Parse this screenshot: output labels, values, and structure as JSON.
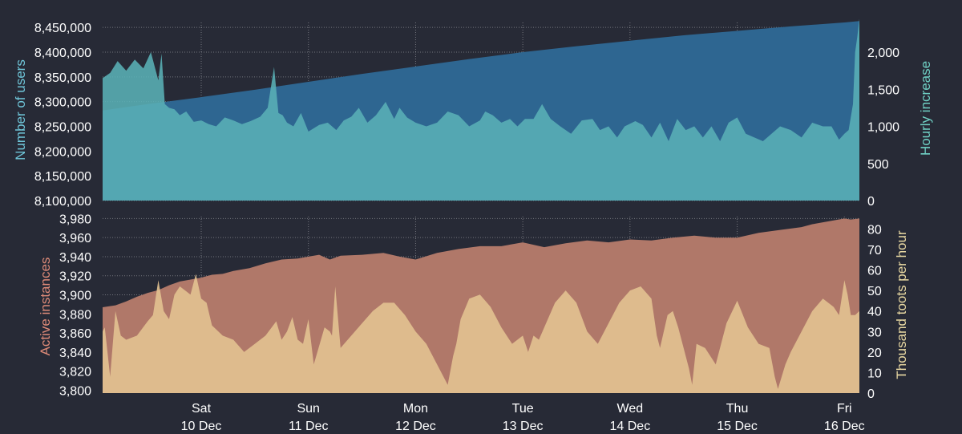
{
  "colors": {
    "background": "#272a36",
    "users_area": "#2e6691",
    "hourly_area": "#5ab0b6",
    "instances_area": "#b07869",
    "toots_area": "#e3c291",
    "tick_text": "#ffffff",
    "users_label": "#6fc5d8",
    "hourly_label": "#6fd0c4",
    "instances_label": "#dd8a78",
    "toots_label": "#e8d8a2"
  },
  "x_ticks": [
    {
      "day": "Sat",
      "date": "10 Dec",
      "x": 2.0
    },
    {
      "day": "Sun",
      "date": "11 Dec",
      "x": 3.0
    },
    {
      "day": "Mon",
      "date": "12 Dec",
      "x": 4.0
    },
    {
      "day": "Tue",
      "date": "13 Dec",
      "x": 5.0
    },
    {
      "day": "Wed",
      "date": "14 Dec",
      "x": 6.0
    },
    {
      "day": "Thu",
      "date": "15 Dec",
      "x": 7.0
    },
    {
      "day": "Fri",
      "date": "16 Dec",
      "x": 8.0
    }
  ],
  "chart_data": [
    {
      "type": "area",
      "x_domain": [
        1.08,
        8.14
      ],
      "y_left": {
        "label": "Number of users",
        "lim": [
          8100000,
          8460000
        ],
        "ticks": [
          "8,100,000",
          "8,150,000",
          "8,200,000",
          "8,250,000",
          "8,300,000",
          "8,350,000",
          "8,400,000",
          "8,450,000"
        ],
        "tick_values": [
          8100000,
          8150000,
          8200000,
          8250000,
          8300000,
          8350000,
          8400000,
          8450000
        ]
      },
      "y_right": {
        "label": "Hourly increase",
        "lim": [
          0,
          2400
        ],
        "ticks": [
          "0",
          "500",
          "1,000",
          "1,500",
          "2,000"
        ],
        "tick_values": [
          0,
          500,
          1000,
          1500,
          2000
        ]
      },
      "series": [
        {
          "axis": "left",
          "x": [
            1.08,
            1.5,
            2.0,
            2.5,
            3.0,
            3.5,
            4.0,
            4.5,
            5.0,
            5.5,
            6.0,
            6.5,
            7.0,
            7.5,
            8.0,
            8.14
          ],
          "values": [
            8282000,
            8295000,
            8309000,
            8324000,
            8340000,
            8356000,
            8371000,
            8386000,
            8400000,
            8412000,
            8423000,
            8434000,
            8443000,
            8452000,
            8460000,
            8463000
          ]
        },
        {
          "axis": "right",
          "x": [
            1.08,
            1.15,
            1.22,
            1.3,
            1.38,
            1.46,
            1.53,
            1.6,
            1.63,
            1.66,
            1.7,
            1.75,
            1.8,
            1.86,
            1.93,
            2.0,
            2.07,
            2.14,
            2.22,
            2.3,
            2.38,
            2.46,
            2.55,
            2.62,
            2.68,
            2.72,
            2.76,
            2.8,
            2.86,
            2.93,
            3.0,
            3.1,
            3.18,
            3.26,
            3.33,
            3.4,
            3.47,
            3.55,
            3.63,
            3.72,
            3.8,
            3.85,
            3.92,
            4.0,
            4.1,
            4.2,
            4.3,
            4.4,
            4.5,
            4.6,
            4.65,
            4.72,
            4.8,
            4.88,
            4.95,
            5.02,
            5.1,
            5.18,
            5.26,
            5.35,
            5.45,
            5.55,
            5.65,
            5.72,
            5.8,
            5.88,
            5.95,
            6.05,
            6.12,
            6.2,
            6.28,
            6.36,
            6.44,
            6.52,
            6.6,
            6.68,
            6.76,
            6.84,
            6.92,
            7.0,
            7.08,
            7.16,
            7.24,
            7.32,
            7.4,
            7.5,
            7.6,
            7.7,
            7.8,
            7.88,
            7.95,
            8.0,
            8.04,
            8.08,
            8.1,
            8.12,
            8.14
          ],
          "values": [
            1650,
            1720,
            1880,
            1750,
            1900,
            1780,
            2000,
            1620,
            1980,
            1300,
            1250,
            1230,
            1150,
            1200,
            1060,
            1080,
            1030,
            1000,
            1120,
            1080,
            1030,
            1070,
            1130,
            1250,
            1800,
            1180,
            1150,
            1050,
            1000,
            1180,
            930,
            1020,
            1050,
            950,
            1080,
            1130,
            1250,
            1050,
            1150,
            1330,
            1100,
            1250,
            1120,
            1050,
            1000,
            1050,
            1200,
            1150,
            1000,
            1080,
            1200,
            1150,
            1050,
            1100,
            1000,
            1100,
            1100,
            1300,
            1100,
            1000,
            900,
            1080,
            1100,
            950,
            1000,
            850,
            1000,
            1070,
            1020,
            850,
            1050,
            800,
            1100,
            950,
            1000,
            850,
            1000,
            800,
            1050,
            1120,
            900,
            850,
            800,
            900,
            1000,
            950,
            850,
            1050,
            1000,
            1000,
            820,
            900,
            950,
            1300,
            2000,
            2200,
            2450
          ]
        }
      ]
    },
    {
      "type": "area",
      "x_domain": [
        1.08,
        8.14
      ],
      "y_left": {
        "label": "Active instances",
        "lim": [
          3797,
          3982
        ],
        "ticks": [
          "3,800",
          "3,820",
          "3,840",
          "3,860",
          "3,880",
          "3,900",
          "3,920",
          "3,940",
          "3,960",
          "3,980"
        ],
        "tick_values": [
          3800,
          3820,
          3840,
          3860,
          3880,
          3900,
          3920,
          3940,
          3960,
          3980
        ]
      },
      "y_right": {
        "label": "Thousand toots per hour",
        "lim": [
          0,
          86
        ],
        "ticks": [
          "0",
          "10",
          "20",
          "30",
          "40",
          "50",
          "60",
          "70",
          "80"
        ],
        "tick_values": [
          0,
          10,
          20,
          30,
          40,
          50,
          60,
          70,
          80
        ]
      },
      "series": [
        {
          "axis": "left",
          "x": [
            1.08,
            1.2,
            1.3,
            1.4,
            1.5,
            1.6,
            1.7,
            1.8,
            1.9,
            2.0,
            2.1,
            2.2,
            2.3,
            2.45,
            2.6,
            2.75,
            2.9,
            3.0,
            3.1,
            3.2,
            3.3,
            3.5,
            3.7,
            3.85,
            4.0,
            4.2,
            4.4,
            4.6,
            4.8,
            5.0,
            5.2,
            5.4,
            5.6,
            5.8,
            6.0,
            6.2,
            6.4,
            6.6,
            6.8,
            7.0,
            7.2,
            7.4,
            7.6,
            7.7,
            7.8,
            7.9,
            8.0,
            8.06,
            8.14
          ],
          "values": [
            3887,
            3889,
            3893,
            3898,
            3902,
            3905,
            3910,
            3914,
            3916,
            3918,
            3921,
            3922,
            3925,
            3928,
            3933,
            3937,
            3938,
            3940,
            3942,
            3937,
            3941,
            3942,
            3944,
            3940,
            3937,
            3944,
            3948,
            3951,
            3951,
            3955,
            3950,
            3954,
            3957,
            3955,
            3958,
            3957,
            3960,
            3962,
            3960,
            3960,
            3965,
            3968,
            3971,
            3974,
            3976,
            3978,
            3980,
            3979,
            3980
          ]
        },
        {
          "axis": "right",
          "x": [
            1.08,
            1.1,
            1.15,
            1.2,
            1.25,
            1.3,
            1.4,
            1.5,
            1.55,
            1.6,
            1.65,
            1.7,
            1.75,
            1.8,
            1.85,
            1.9,
            1.95,
            2.0,
            2.05,
            2.1,
            2.2,
            2.3,
            2.4,
            2.5,
            2.6,
            2.7,
            2.75,
            2.8,
            2.85,
            2.9,
            2.95,
            3.0,
            3.05,
            3.1,
            3.15,
            3.2,
            3.22,
            3.25,
            3.3,
            3.4,
            3.5,
            3.6,
            3.7,
            3.8,
            3.9,
            4.0,
            4.1,
            4.2,
            4.3,
            4.35,
            4.38,
            4.42,
            4.5,
            4.6,
            4.7,
            4.8,
            4.9,
            5.0,
            5.05,
            5.1,
            5.15,
            5.2,
            5.3,
            5.4,
            5.5,
            5.6,
            5.7,
            5.8,
            5.9,
            6.0,
            6.1,
            6.2,
            6.25,
            6.28,
            6.35,
            6.4,
            6.45,
            6.55,
            6.58,
            6.62,
            6.7,
            6.8,
            6.9,
            7.0,
            7.1,
            7.2,
            7.3,
            7.35,
            7.38,
            7.45,
            7.5,
            7.6,
            7.7,
            7.8,
            7.9,
            7.95,
            8.0,
            8.03,
            8.06,
            8.1,
            8.14
          ],
          "values": [
            30,
            32,
            8,
            40,
            28,
            26,
            28,
            35,
            38,
            55,
            40,
            36,
            48,
            52,
            50,
            48,
            58,
            46,
            44,
            33,
            28,
            26,
            20,
            24,
            28,
            35,
            26,
            30,
            37,
            26,
            24,
            36,
            14,
            23,
            32,
            30,
            28,
            52,
            22,
            28,
            34,
            40,
            44,
            44,
            38,
            30,
            24,
            14,
            4,
            18,
            24,
            36,
            46,
            48,
            42,
            32,
            24,
            28,
            20,
            28,
            26,
            32,
            44,
            50,
            44,
            30,
            24,
            34,
            44,
            50,
            52,
            46,
            28,
            22,
            38,
            40,
            32,
            12,
            4,
            24,
            22,
            14,
            34,
            45,
            32,
            24,
            22,
            8,
            2,
            14,
            20,
            30,
            40,
            46,
            42,
            38,
            55,
            48,
            38,
            38,
            40
          ]
        }
      ]
    }
  ]
}
